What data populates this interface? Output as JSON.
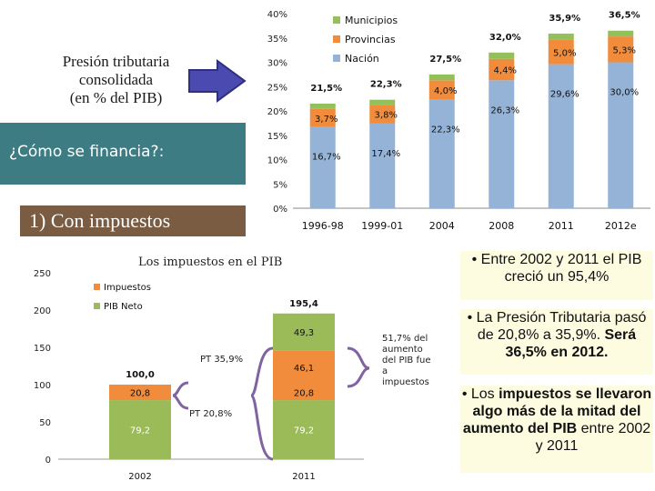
{
  "title": {
    "line1": "Presión tributaria",
    "line2": "consolidada",
    "line3": "(en % del PIB)"
  },
  "question": "¿Cómo se financia?:",
  "section": "1) Con  impuestos",
  "colors": {
    "municipios": "#92c05a",
    "provincias": "#f08c3c",
    "nacion": "#95b3d7",
    "impuestos": "#f08c3c",
    "pib_neto": "#9bbb59",
    "teal": "#3e7c83",
    "brown": "#7a5c42",
    "arrow": "#4a4ab0",
    "brace": "#8064a2"
  },
  "chart_data": [
    {
      "type": "bar",
      "stacked": true,
      "categories": [
        "1996-98",
        "1999-01",
        "2004",
        "2008",
        "2011",
        "2012e"
      ],
      "series": [
        {
          "name": "Nación",
          "values": [
            16.7,
            17.4,
            22.3,
            26.3,
            29.6,
            30.0
          ],
          "labels": [
            "16,7%",
            "17,4%",
            "22,3%",
            "26,3%",
            "29,6%",
            "30,0%"
          ]
        },
        {
          "name": "Provincias",
          "values": [
            3.7,
            3.8,
            4.0,
            4.4,
            5.0,
            5.3
          ],
          "labels": [
            "3,7%",
            "3,8%",
            "4,0%",
            "4,4%",
            "5,0%",
            "5,3%"
          ]
        },
        {
          "name": "Municipios",
          "values": [
            1.1,
            1.1,
            1.2,
            1.3,
            1.3,
            1.2
          ]
        }
      ],
      "totals": [
        "21,5%",
        "22,3%",
        "27,5%",
        "32,0%",
        "35,9%",
        "36,5%"
      ],
      "ylim": [
        0,
        40
      ],
      "yticks": [
        "0%",
        "5%",
        "10%",
        "15%",
        "20%",
        "25%",
        "30%",
        "35%",
        "40%"
      ],
      "legend_position": "top-left"
    },
    {
      "type": "bar",
      "stacked": true,
      "categories": [
        "2002",
        "2011"
      ],
      "series": [
        {
          "name": "PIB Neto",
          "values": [
            79.2,
            79.2
          ],
          "labels": [
            "79,2",
            "79,2"
          ]
        },
        {
          "name": "Impuestos",
          "values": [
            20.8,
            20.8
          ],
          "labels": [
            "20,8",
            "20,8"
          ]
        },
        {
          "name": "",
          "values": [
            0,
            46.1
          ],
          "labels": [
            "",
            "46,1"
          ]
        },
        {
          "name": "",
          "values": [
            0,
            49.3
          ],
          "labels": [
            "",
            "49,3"
          ]
        }
      ],
      "totals": [
        "100,0",
        "195,4"
      ],
      "title": "Los impuestos en el PIB",
      "ylim": [
        0,
        250
      ],
      "yticks": [
        "0",
        "50",
        "100",
        "150",
        "200",
        "250"
      ],
      "annotations": {
        "pt_2011": "PT 35,9%",
        "pt_2002": "PT 20,8%",
        "aumento": [
          "51,7% del",
          "aumento",
          "del PIB fue",
          "a",
          "impuestos"
        ]
      },
      "legend_position": "top-left"
    }
  ],
  "bullets": {
    "b1": "• Entre 2002 y 2011 el PIB creció un 95,4%",
    "b2_prefix": "• La Presión Tributaria pasó de 20,8% a 35,9%.",
    "b2_bold": "Será 36,5% en 2012.",
    "b3_pre": "• Los ",
    "b3_bold1": "impuestos se llevaron algo más de la mitad del aumento del",
    "b3_bold2": "PIB",
    "b3_post": " entre 2002 y 2011"
  }
}
